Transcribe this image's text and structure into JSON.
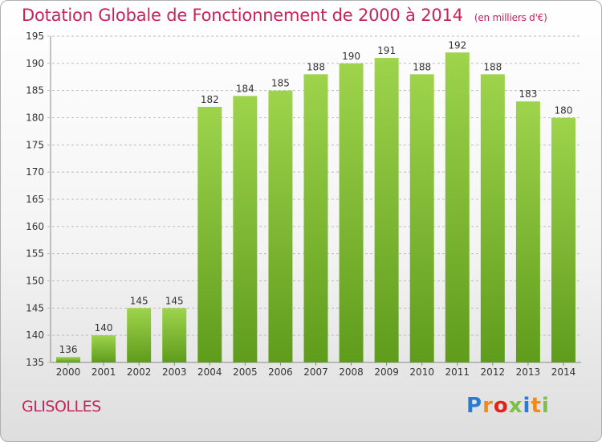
{
  "page": {
    "title": "Dotation Globale de Fonctionnement de 2000 à 2014",
    "subtitle": "(en milliers d'€)",
    "town": "GLISOLLES",
    "logo": {
      "letters": [
        "P",
        "r",
        "o",
        "x",
        "i",
        "t",
        "i"
      ],
      "colors": [
        "#2b7bd6",
        "#f08a1c",
        "#e2231a",
        "#7ac143",
        "#2b7bd6",
        "#f08a1c",
        "#7ac143"
      ]
    }
  },
  "chart_data": {
    "type": "bar",
    "title": "Dotation Globale de Fonctionnement de 2000 à 2014",
    "subtitle": "(en milliers d'€)",
    "categories": [
      "2000",
      "2001",
      "2002",
      "2003",
      "2004",
      "2005",
      "2006",
      "2007",
      "2008",
      "2009",
      "2010",
      "2011",
      "2012",
      "2013",
      "2014"
    ],
    "values": [
      136,
      140,
      145,
      145,
      182,
      184,
      185,
      188,
      190,
      191,
      188,
      192,
      188,
      183,
      180
    ],
    "ylim": [
      135,
      195
    ],
    "yticks": [
      135,
      140,
      145,
      150,
      155,
      160,
      165,
      170,
      175,
      180,
      185,
      190,
      195
    ],
    "grid": true,
    "bar_color": "#8cc63f"
  }
}
